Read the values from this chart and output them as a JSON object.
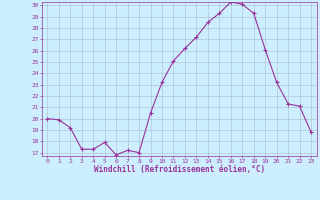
{
  "x": [
    0,
    1,
    2,
    3,
    4,
    5,
    6,
    7,
    8,
    9,
    10,
    11,
    12,
    13,
    14,
    15,
    16,
    17,
    18,
    19,
    20,
    21,
    22,
    23
  ],
  "y": [
    20.0,
    19.9,
    19.2,
    17.3,
    17.3,
    17.9,
    16.8,
    17.2,
    17.0,
    20.5,
    23.2,
    25.1,
    26.2,
    27.2,
    28.5,
    29.3,
    30.3,
    30.1,
    29.3,
    26.1,
    23.2,
    21.3,
    21.1,
    18.8
  ],
  "line_color": "#993399",
  "marker": "+",
  "markersize": 3.5,
  "linewidth": 0.8,
  "bg_color": "#cceeff",
  "grid_color": "#aabbcc",
  "xlabel": "Windchill (Refroidissement éolien,°C)",
  "xlabel_color": "#993399",
  "tick_color": "#993399",
  "ylim": [
    17,
    30
  ],
  "xlim": [
    -0.5,
    23.5
  ],
  "yticks": [
    17,
    18,
    19,
    20,
    21,
    22,
    23,
    24,
    25,
    26,
    27,
    28,
    29,
    30
  ],
  "xticks": [
    0,
    1,
    2,
    3,
    4,
    5,
    6,
    7,
    8,
    9,
    10,
    11,
    12,
    13,
    14,
    15,
    16,
    17,
    18,
    19,
    20,
    21,
    22,
    23
  ]
}
